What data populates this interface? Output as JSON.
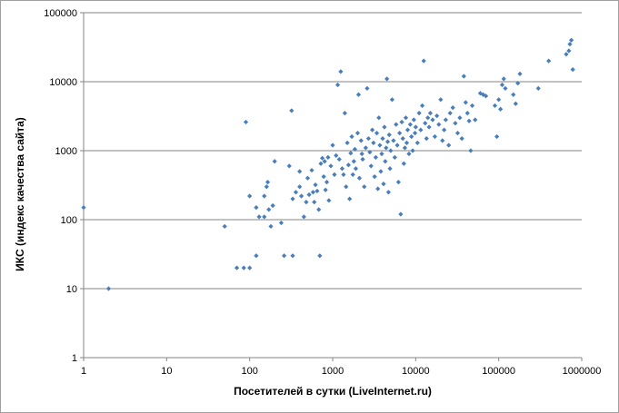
{
  "chart_data": {
    "type": "scatter",
    "xlabel": "Посетителей в сутки (LiveInternet.ru)",
    "ylabel": "ИКС (индекс качества сайта)",
    "xscale": "log",
    "yscale": "log",
    "xlim": [
      1,
      1000000
    ],
    "ylim": [
      1,
      100000
    ],
    "xticks": [
      "1",
      "10",
      "100",
      "1000",
      "10000",
      "100000",
      "1000000"
    ],
    "yticks": [
      "1",
      "10",
      "100",
      "1000",
      "10000",
      "100000"
    ],
    "grid": "horizontal-major",
    "legend": "none",
    "marker_color": "#4a7ebb",
    "points": [
      [
        1,
        150
      ],
      [
        2,
        10
      ],
      [
        50,
        80
      ],
      [
        70,
        20
      ],
      [
        85,
        20
      ],
      [
        90,
        2600
      ],
      [
        100,
        20
      ],
      [
        100,
        220
      ],
      [
        120,
        30
      ],
      [
        120,
        150
      ],
      [
        130,
        110
      ],
      [
        150,
        110
      ],
      [
        150,
        220
      ],
      [
        160,
        300
      ],
      [
        165,
        350
      ],
      [
        170,
        140
      ],
      [
        180,
        80
      ],
      [
        190,
        160
      ],
      [
        200,
        700
      ],
      [
        240,
        90
      ],
      [
        260,
        30
      ],
      [
        300,
        600
      ],
      [
        320,
        3800
      ],
      [
        330,
        30
      ],
      [
        330,
        200
      ],
      [
        360,
        250
      ],
      [
        400,
        500
      ],
      [
        400,
        300
      ],
      [
        420,
        220
      ],
      [
        450,
        110
      ],
      [
        480,
        180
      ],
      [
        500,
        400
      ],
      [
        520,
        230
      ],
      [
        560,
        520
      ],
      [
        580,
        250
      ],
      [
        600,
        180
      ],
      [
        620,
        320
      ],
      [
        650,
        260
      ],
      [
        680,
        140
      ],
      [
        700,
        30
      ],
      [
        720,
        650
      ],
      [
        750,
        780
      ],
      [
        780,
        420
      ],
      [
        800,
        700
      ],
      [
        820,
        270
      ],
      [
        850,
        350
      ],
      [
        880,
        800
      ],
      [
        900,
        190
      ],
      [
        950,
        600
      ],
      [
        1000,
        1200
      ],
      [
        1050,
        450
      ],
      [
        1100,
        850
      ],
      [
        1150,
        9000
      ],
      [
        1200,
        750
      ],
      [
        1250,
        14000
      ],
      [
        1300,
        550
      ],
      [
        1350,
        450
      ],
      [
        1400,
        3500
      ],
      [
        1450,
        300
      ],
      [
        1500,
        1300
      ],
      [
        1550,
        620
      ],
      [
        1600,
        200
      ],
      [
        1650,
        920
      ],
      [
        1700,
        1600
      ],
      [
        1750,
        450
      ],
      [
        1800,
        700
      ],
      [
        1850,
        1050
      ],
      [
        1900,
        550
      ],
      [
        2000,
        1800
      ],
      [
        2050,
        6500
      ],
      [
        2100,
        400
      ],
      [
        2200,
        1400
      ],
      [
        2250,
        900
      ],
      [
        2300,
        750
      ],
      [
        2400,
        300
      ],
      [
        2500,
        1100
      ],
      [
        2600,
        8000
      ],
      [
        2700,
        1500
      ],
      [
        2800,
        950
      ],
      [
        2900,
        600
      ],
      [
        3000,
        2000
      ],
      [
        3100,
        1300
      ],
      [
        3200,
        420
      ],
      [
        3300,
        800
      ],
      [
        3400,
        1800
      ],
      [
        3500,
        280
      ],
      [
        3600,
        3000
      ],
      [
        3700,
        1200
      ],
      [
        3800,
        500
      ],
      [
        3900,
        900
      ],
      [
        4000,
        1500
      ],
      [
        4100,
        330
      ],
      [
        4200,
        2200
      ],
      [
        4300,
        700
      ],
      [
        4400,
        1100
      ],
      [
        4500,
        11000
      ],
      [
        4600,
        1350
      ],
      [
        4700,
        250
      ],
      [
        4800,
        1700
      ],
      [
        4900,
        550
      ],
      [
        5000,
        1000
      ],
      [
        5200,
        5500
      ],
      [
        5400,
        1400
      ],
      [
        5600,
        800
      ],
      [
        5800,
        2400
      ],
      [
        6000,
        1200
      ],
      [
        6200,
        350
      ],
      [
        6400,
        1800
      ],
      [
        6600,
        120
      ],
      [
        6800,
        2600
      ],
      [
        7000,
        1500
      ],
      [
        7200,
        650
      ],
      [
        7400,
        1100
      ],
      [
        7600,
        3000
      ],
      [
        7800,
        1300
      ],
      [
        8000,
        2000
      ],
      [
        8300,
        900
      ],
      [
        8600,
        2400
      ],
      [
        8900,
        1600
      ],
      [
        9200,
        1000
      ],
      [
        9500,
        2800
      ],
      [
        9800,
        1800
      ],
      [
        10000,
        2200
      ],
      [
        10500,
        1300
      ],
      [
        11000,
        3500
      ],
      [
        11500,
        2000
      ],
      [
        12000,
        4500
      ],
      [
        12500,
        20000
      ],
      [
        13000,
        2500
      ],
      [
        13500,
        1500
      ],
      [
        14000,
        3000
      ],
      [
        14500,
        2200
      ],
      [
        15000,
        3500
      ],
      [
        16000,
        2800
      ],
      [
        17000,
        1600
      ],
      [
        18000,
        3200
      ],
      [
        19000,
        2400
      ],
      [
        20000,
        5500
      ],
      [
        21000,
        1400
      ],
      [
        22000,
        2000
      ],
      [
        23000,
        2800
      ],
      [
        25000,
        1200
      ],
      [
        26000,
        3500
      ],
      [
        28000,
        4200
      ],
      [
        30000,
        2500
      ],
      [
        32000,
        1800
      ],
      [
        34000,
        3000
      ],
      [
        36000,
        1500
      ],
      [
        38000,
        12000
      ],
      [
        40000,
        5000
      ],
      [
        42000,
        3500
      ],
      [
        44000,
        2700
      ],
      [
        46000,
        1000
      ],
      [
        48000,
        4500
      ],
      [
        52000,
        2800
      ],
      [
        60000,
        6800
      ],
      [
        65000,
        6500
      ],
      [
        70000,
        6200
      ],
      [
        90000,
        4500
      ],
      [
        95000,
        1600
      ],
      [
        100000,
        5500
      ],
      [
        105000,
        4000
      ],
      [
        110000,
        9000
      ],
      [
        115000,
        11000
      ],
      [
        120000,
        8000
      ],
      [
        150000,
        6500
      ],
      [
        160000,
        4800
      ],
      [
        170000,
        9500
      ],
      [
        180000,
        13000
      ],
      [
        300000,
        8000
      ],
      [
        400000,
        20000
      ],
      [
        650000,
        25000
      ],
      [
        700000,
        28000
      ],
      [
        720000,
        35000
      ],
      [
        750000,
        40000
      ],
      [
        780000,
        15000
      ]
    ]
  }
}
